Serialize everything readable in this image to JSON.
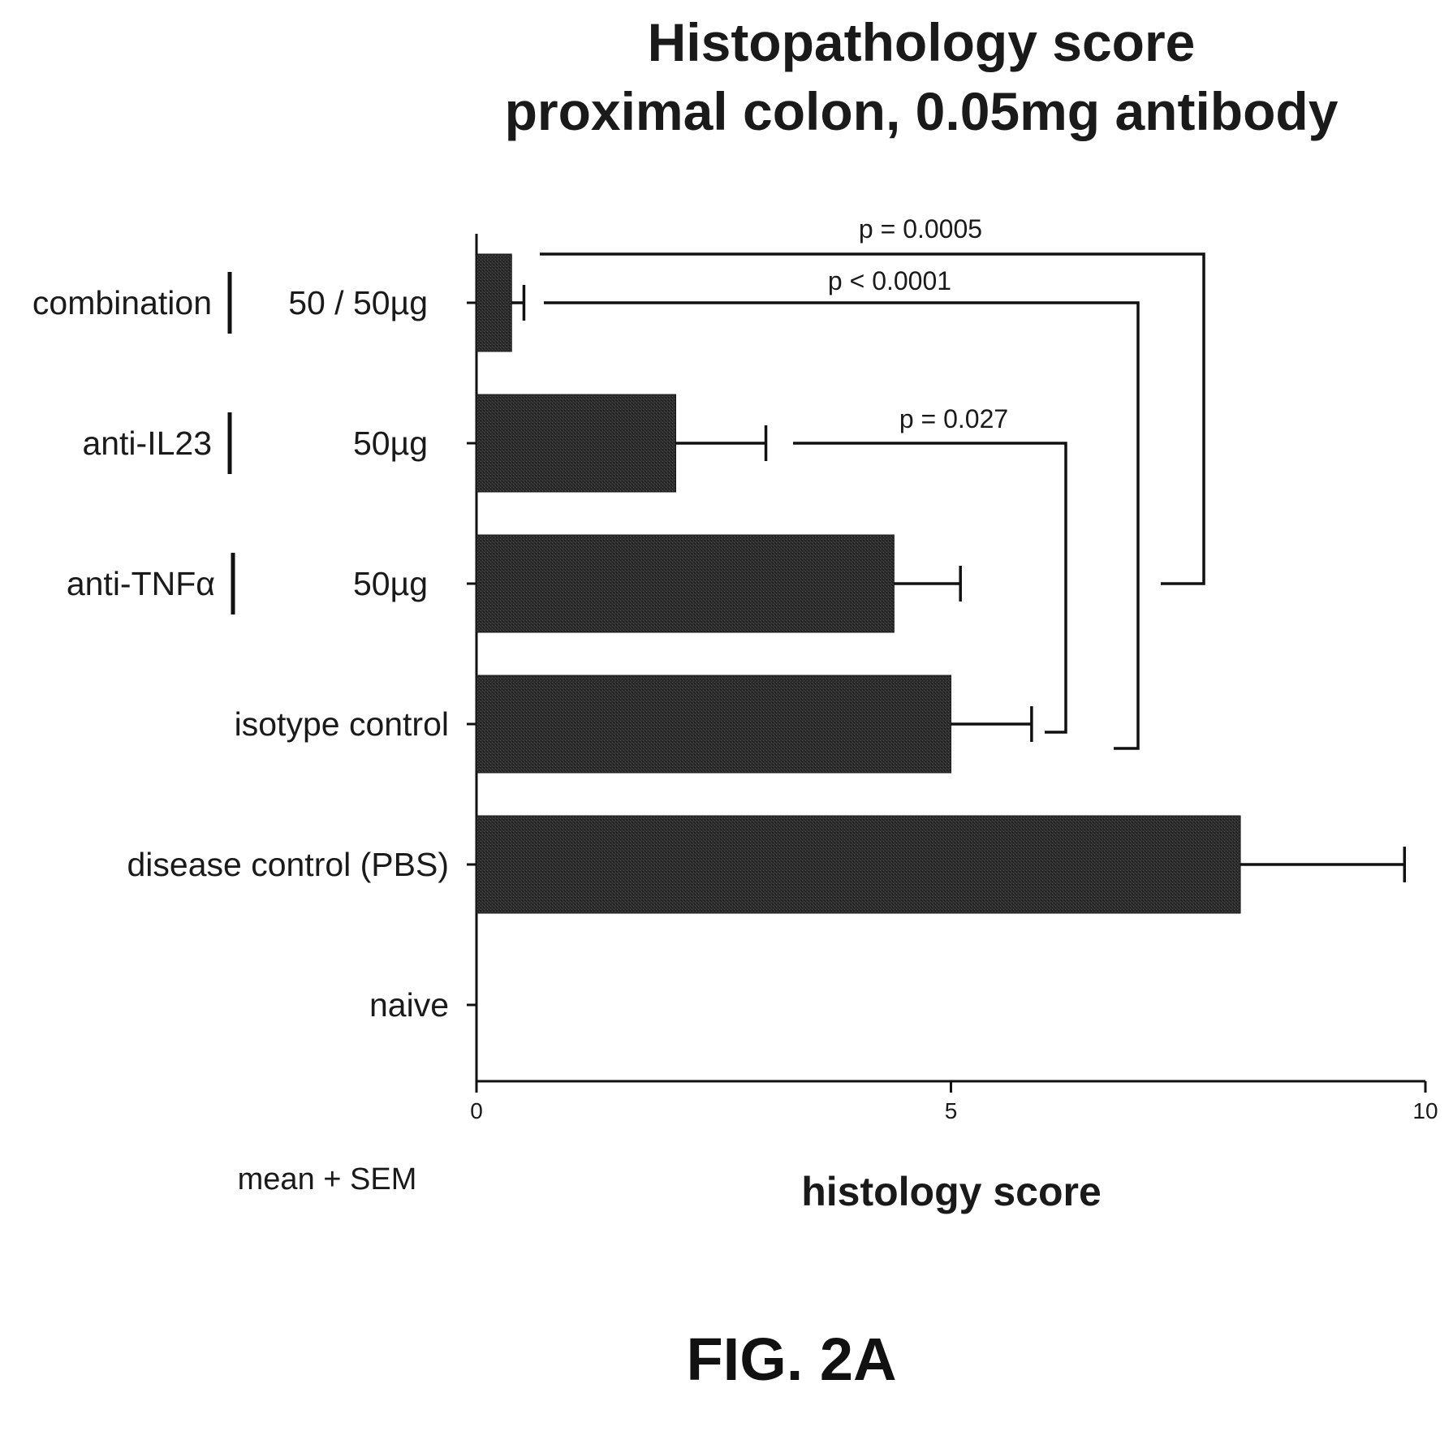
{
  "chart_data": {
    "type": "bar",
    "orientation": "horizontal",
    "title_lines": [
      "Histopathology score",
      "proximal colon, 0.05mg antibody"
    ],
    "xlabel": "histology score",
    "xlim": [
      0,
      10
    ],
    "xticks": [
      "0",
      "5",
      "10"
    ],
    "categories": [
      {
        "name": "combination",
        "dose": "50 / 50µg",
        "value": 0.37,
        "sem": 0.13
      },
      {
        "name": "anti-IL23",
        "dose": "50µg",
        "value": 2.1,
        "sem": 0.95
      },
      {
        "name": "anti-TNFα",
        "dose": "50µg",
        "value": 4.4,
        "sem": 0.7
      },
      {
        "name": "isotype control",
        "dose": "",
        "value": 5.0,
        "sem": 0.85
      },
      {
        "name": "disease control (PBS)",
        "dose": "",
        "value": 8.05,
        "sem": 1.73
      },
      {
        "name": "naive",
        "dose": "",
        "value": 0,
        "sem": 0
      }
    ],
    "comparisons": [
      {
        "label": "p = 0.0005",
        "from": "combination",
        "to": "anti-TNFα"
      },
      {
        "label": "p < 0.0001",
        "from": "combination",
        "to": "isotype control"
      },
      {
        "label": "p = 0.027",
        "from": "anti-IL23",
        "to": "isotype control"
      }
    ],
    "bar_color": "#2b2b2b",
    "note": "mean + SEM"
  },
  "figure_label": "FIG. 2A"
}
